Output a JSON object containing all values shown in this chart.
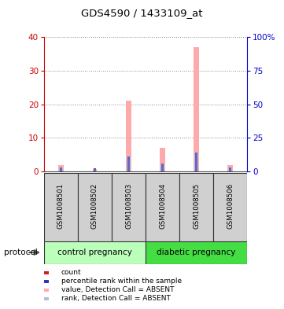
{
  "title": "GDS4590 / 1433109_at",
  "samples": [
    "GSM1008501",
    "GSM1008502",
    "GSM1008503",
    "GSM1008504",
    "GSM1008505",
    "GSM1008506"
  ],
  "groups": [
    "control pregnancy",
    "diabetic pregnancy"
  ],
  "count_values": [
    1,
    1,
    1,
    1,
    1,
    1
  ],
  "rank_values": [
    3,
    2,
    11,
    6,
    14,
    3
  ],
  "value_absent": [
    2,
    0,
    21,
    7,
    37,
    2
  ],
  "rank_absent": [
    3,
    2,
    11,
    6,
    14,
    3
  ],
  "left_ylim": [
    0,
    40
  ],
  "right_ylim": [
    0,
    100
  ],
  "left_yticks": [
    0,
    10,
    20,
    30,
    40
  ],
  "right_yticks": [
    0,
    25,
    50,
    75,
    100
  ],
  "right_yticklabels": [
    "0",
    "25",
    "50",
    "75",
    "100%"
  ],
  "left_ycolor": "#cc0000",
  "right_ycolor": "#0000cc",
  "count_color": "#cc2222",
  "rank_color": "#6666bb",
  "value_absent_color": "#ffaaaa",
  "rank_absent_color": "#bbbbdd",
  "grid_color": "#888888",
  "sample_bg": "#d0d0d0",
  "control_color": "#bbffbb",
  "diabetic_color": "#44dd44",
  "legend_items": [
    {
      "color": "#cc2222",
      "label": "count"
    },
    {
      "color": "#3333bb",
      "label": "percentile rank within the sample"
    },
    {
      "color": "#ffaaaa",
      "label": "value, Detection Call = ABSENT"
    },
    {
      "color": "#bbbbdd",
      "label": "rank, Detection Call = ABSENT"
    }
  ],
  "protocol_label": "protocol",
  "figsize": [
    3.61,
    3.93
  ],
  "dpi": 100
}
